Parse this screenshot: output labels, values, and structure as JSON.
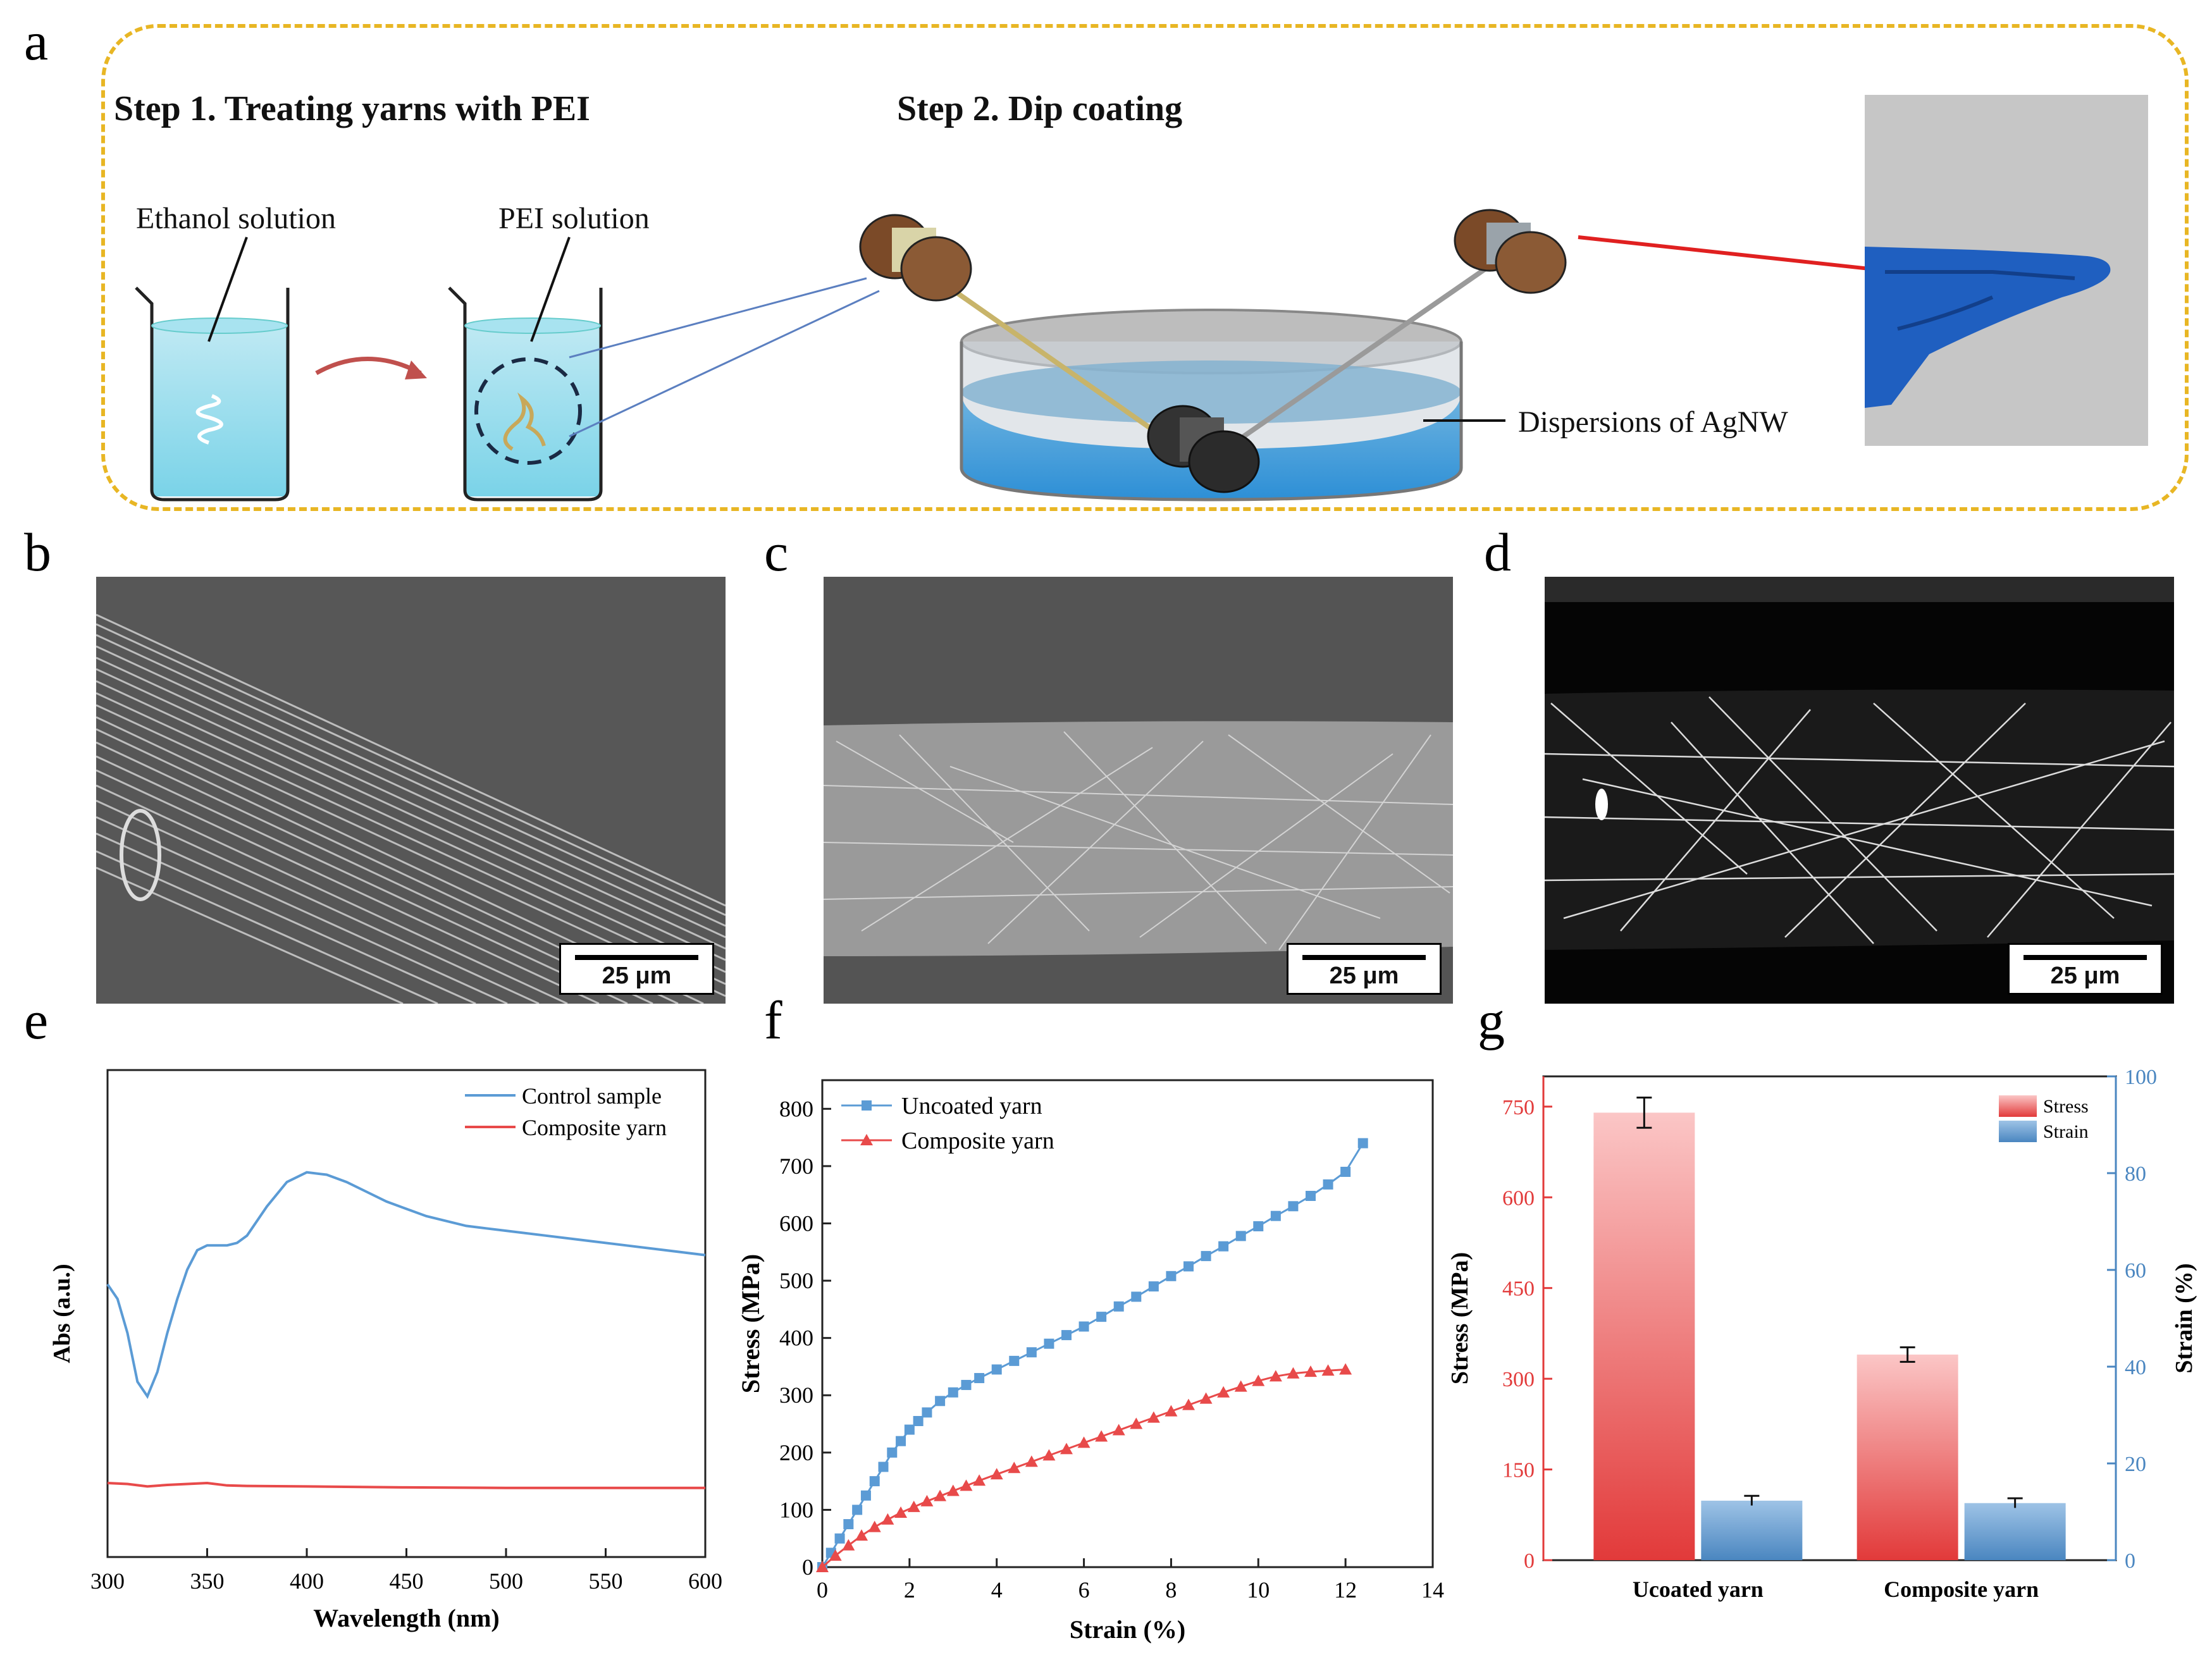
{
  "panels": {
    "a": "a",
    "b": "b",
    "c": "c",
    "d": "d",
    "e": "e",
    "f": "f",
    "g": "g"
  },
  "schematic": {
    "step1_title": "Step 1. Treating yarns with PEI",
    "step2_title": "Step 2. Dip coating",
    "ethanol_label": "Ethanol solution",
    "pei_label": "PEI solution",
    "agnw_label": "Dispersions of AgNW"
  },
  "sem": {
    "b_scale": "25 μm",
    "c_scale": "25 μm",
    "d_scale": "25 μm"
  },
  "colors": {
    "border_dash": "#e8b624",
    "blue_line": "#5b9bd5",
    "red_line": "#e84a4a",
    "stress_bar": "#e23a3a",
    "strain_bar": "#4a86c0",
    "arrow": "#c0504d"
  },
  "chart_data": [
    {
      "panel": "e",
      "type": "line",
      "xlabel": "Wavelength (nm)",
      "ylabel": "Abs (a.u.)",
      "xlim": [
        300,
        600
      ],
      "xticks": [
        "300",
        "350",
        "400",
        "450",
        "500",
        "550",
        "600"
      ],
      "ylim": [
        0,
        1
      ],
      "series": [
        {
          "name": "Control sample",
          "x": [
            300,
            305,
            310,
            315,
            320,
            325,
            330,
            335,
            340,
            345,
            350,
            355,
            360,
            365,
            370,
            380,
            390,
            400,
            410,
            420,
            430,
            440,
            450,
            460,
            470,
            480,
            490,
            500,
            520,
            540,
            560,
            580,
            600
          ],
          "values": [
            0.56,
            0.53,
            0.46,
            0.36,
            0.33,
            0.38,
            0.46,
            0.53,
            0.59,
            0.63,
            0.64,
            0.64,
            0.64,
            0.645,
            0.66,
            0.72,
            0.77,
            0.79,
            0.785,
            0.77,
            0.75,
            0.73,
            0.715,
            0.7,
            0.69,
            0.68,
            0.675,
            0.67,
            0.66,
            0.65,
            0.64,
            0.63,
            0.62
          ]
        },
        {
          "name": "Composite yarn",
          "x": [
            300,
            310,
            320,
            330,
            340,
            350,
            360,
            370,
            400,
            450,
            500,
            550,
            600
          ],
          "values": [
            0.152,
            0.15,
            0.145,
            0.148,
            0.15,
            0.152,
            0.147,
            0.146,
            0.145,
            0.143,
            0.142,
            0.142,
            0.142
          ]
        }
      ]
    },
    {
      "panel": "f",
      "type": "line",
      "xlabel": "Strain (%)",
      "ylabel": "Stress (MPa)",
      "xlim": [
        0,
        14
      ],
      "ylim": [
        0,
        850
      ],
      "xticks": [
        "0",
        "2",
        "4",
        "6",
        "8",
        "10",
        "12",
        "14"
      ],
      "yticks": [
        "0",
        "100",
        "200",
        "300",
        "400",
        "500",
        "600",
        "700",
        "800"
      ],
      "series": [
        {
          "name": "Uncoated yarn",
          "marker": "square",
          "x": [
            0,
            0.2,
            0.4,
            0.6,
            0.8,
            1.0,
            1.2,
            1.4,
            1.6,
            1.8,
            2.0,
            2.2,
            2.4,
            2.7,
            3.0,
            3.3,
            3.6,
            4.0,
            4.4,
            4.8,
            5.2,
            5.6,
            6.0,
            6.4,
            6.8,
            7.2,
            7.6,
            8.0,
            8.4,
            8.8,
            9.2,
            9.6,
            10.0,
            10.4,
            10.8,
            11.2,
            11.6,
            12.0,
            12.4
          ],
          "values": [
            0,
            25,
            50,
            75,
            100,
            125,
            150,
            175,
            200,
            220,
            240,
            255,
            270,
            290,
            305,
            318,
            330,
            345,
            360,
            375,
            390,
            405,
            420,
            437,
            455,
            472,
            490,
            508,
            525,
            543,
            560,
            578,
            595,
            613,
            630,
            648,
            668,
            690,
            740
          ]
        },
        {
          "name": "Composite yarn",
          "marker": "triangle",
          "x": [
            0,
            0.3,
            0.6,
            0.9,
            1.2,
            1.5,
            1.8,
            2.1,
            2.4,
            2.7,
            3.0,
            3.3,
            3.6,
            4.0,
            4.4,
            4.8,
            5.2,
            5.6,
            6.0,
            6.4,
            6.8,
            7.2,
            7.6,
            8.0,
            8.4,
            8.8,
            9.2,
            9.6,
            10.0,
            10.4,
            10.8,
            11.2,
            11.6,
            12.0
          ],
          "values": [
            0,
            20,
            38,
            55,
            70,
            83,
            95,
            105,
            115,
            124,
            133,
            142,
            151,
            162,
            173,
            184,
            195,
            206,
            217,
            228,
            239,
            250,
            261,
            272,
            283,
            294,
            305,
            315,
            325,
            333,
            338,
            341,
            343,
            345
          ]
        }
      ]
    },
    {
      "panel": "g",
      "type": "bar",
      "categories": [
        "Ucoated yarn",
        "Composite yarn"
      ],
      "ylabel": "Stress (MPa)",
      "y2label": "Strain (%)",
      "ylim": [
        0,
        800
      ],
      "y2lim": [
        0,
        100
      ],
      "yticks": [
        "0",
        "150",
        "300",
        "450",
        "600",
        "750"
      ],
      "y2ticks": [
        "0",
        "20",
        "40",
        "60",
        "80",
        "100"
      ],
      "series": [
        {
          "name": "Stress",
          "axis": "left",
          "values": [
            740,
            340
          ],
          "errors": [
            25,
            12
          ]
        },
        {
          "name": "Strain",
          "axis": "right",
          "values": [
            12.3,
            11.8
          ],
          "errors": [
            1.0,
            1.0
          ]
        }
      ]
    }
  ]
}
